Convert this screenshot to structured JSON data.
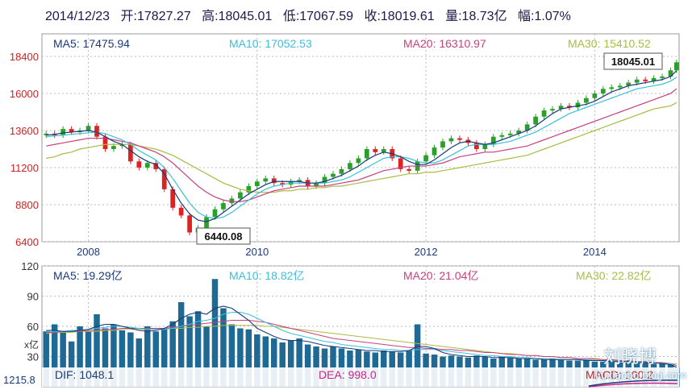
{
  "header": {
    "date": "2014/12/23",
    "open": "开:17827.27",
    "high": "高:18045.01",
    "low": "低:17067.59",
    "close": "收:18019.61",
    "volume": "量:18.73亿",
    "change": "幅:1.07%"
  },
  "price_ma_labels": [
    {
      "text": "MA5: 17475.94",
      "color": "#1a3a7a"
    },
    {
      "text": "MA10: 17052.53",
      "color": "#3cc0d8"
    },
    {
      "text": "MA20: 16310.97",
      "color": "#c8407e"
    },
    {
      "text": "MA30: 15410.52",
      "color": "#aabb44"
    }
  ],
  "volume_ma_labels": [
    {
      "text": "MA5: 19.29亿",
      "color": "#1a3a7a"
    },
    {
      "text": "MA10: 18.82亿",
      "color": "#3cc0d8"
    },
    {
      "text": "MA20: 21.04亿",
      "color": "#c8407e"
    },
    {
      "text": "MA30: 22.82亿",
      "color": "#aabb44"
    }
  ],
  "macd": {
    "dif": "DIF: 1048.1",
    "dea": "DEA: 998.0",
    "macd": "MACD: 100.2",
    "left_value": "1215.8"
  },
  "volume_unit": "x亿",
  "callouts": {
    "high": "18045.01",
    "low": "6440.08"
  },
  "watermark": {
    "name": "刘晓博",
    "site": "liuxiaobo.blog.com"
  },
  "colors": {
    "up": "#2aa02a",
    "down": "#dd2222",
    "volume": "#1f6a94"
  },
  "chart_data": [
    {
      "type": "candlestick",
      "title": "2014/12/23",
      "x_ticks": [
        "2008",
        "2010",
        "2012",
        "2014"
      ],
      "y_ticks": [
        6400,
        8800,
        11200,
        13600,
        16000,
        18400
      ],
      "ylim": [
        6400,
        18400
      ],
      "grid": true,
      "annotations": [
        {
          "text": "18045.01",
          "x": 2014.97,
          "y": 18045.01
        },
        {
          "text": "6440.08",
          "x": 2009.17,
          "y": 6440.08
        }
      ],
      "x": [
        2007.5,
        2007.6,
        2007.7,
        2007.8,
        2007.9,
        2008.0,
        2008.1,
        2008.2,
        2008.3,
        2008.4,
        2008.5,
        2008.6,
        2008.7,
        2008.8,
        2008.9,
        2009.0,
        2009.1,
        2009.2,
        2009.3,
        2009.4,
        2009.5,
        2009.6,
        2009.7,
        2009.8,
        2009.9,
        2010.0,
        2010.1,
        2010.2,
        2010.3,
        2010.4,
        2010.5,
        2010.6,
        2010.7,
        2010.8,
        2010.9,
        2011.0,
        2011.1,
        2011.2,
        2011.3,
        2011.4,
        2011.5,
        2011.6,
        2011.7,
        2011.8,
        2011.9,
        2012.0,
        2012.1,
        2012.2,
        2012.3,
        2012.4,
        2012.5,
        2012.6,
        2012.7,
        2012.8,
        2012.9,
        2013.0,
        2013.1,
        2013.2,
        2013.3,
        2013.4,
        2013.5,
        2013.6,
        2013.7,
        2013.8,
        2013.9,
        2014.0,
        2014.1,
        2014.2,
        2014.3,
        2014.4,
        2014.5,
        2014.6,
        2014.7,
        2014.8,
        2014.9,
        2014.97
      ],
      "close": [
        13400,
        13300,
        13700,
        13500,
        13600,
        13900,
        13200,
        12400,
        12600,
        12700,
        11600,
        11200,
        11500,
        11100,
        9800,
        8600,
        8100,
        7000,
        7300,
        8000,
        8500,
        8900,
        9200,
        9600,
        10000,
        10300,
        10500,
        10200,
        10100,
        10300,
        10400,
        10000,
        10200,
        10600,
        10800,
        11100,
        11500,
        11800,
        12400,
        12200,
        12400,
        11800,
        11100,
        11000,
        11600,
        12000,
        12500,
        12900,
        13100,
        13000,
        12800,
        12400,
        12700,
        13200,
        13300,
        13400,
        13600,
        14000,
        14500,
        14900,
        15000,
        15200,
        15100,
        15400,
        15700,
        16000,
        16300,
        16400,
        16500,
        16700,
        16900,
        16800,
        17000,
        17100,
        17500,
        18019.61
      ],
      "ma5": [
        13300,
        13350,
        13450,
        13500,
        13550,
        13600,
        13500,
        13200,
        12900,
        12700,
        12300,
        11900,
        11600,
        11400,
        10800,
        9800,
        8900,
        8200,
        7800,
        7700,
        7900,
        8300,
        8700,
        9100,
        9500,
        9800,
        10100,
        10300,
        10300,
        10300,
        10300,
        10200,
        10200,
        10300,
        10500,
        10700,
        11000,
        11300,
        11700,
        12000,
        12200,
        12100,
        11900,
        11600,
        11400,
        11400,
        11700,
        12100,
        12500,
        12800,
        12900,
        12800,
        12700,
        12800,
        13000,
        13200,
        13400,
        13600,
        13900,
        14300,
        14700,
        15000,
        15100,
        15200,
        15300,
        15500,
        15800,
        16100,
        16300,
        16500,
        16600,
        16700,
        16800,
        16900,
        17100,
        17475.94
      ],
      "ma10": [
        13200,
        13250,
        13300,
        13350,
        13400,
        13450,
        13500,
        13400,
        13200,
        13000,
        12700,
        12300,
        12000,
        11700,
        11200,
        10500,
        9700,
        8900,
        8300,
        8000,
        7900,
        8000,
        8300,
        8700,
        9100,
        9500,
        9800,
        10000,
        10100,
        10200,
        10200,
        10200,
        10200,
        10200,
        10300,
        10400,
        10600,
        10900,
        11200,
        11500,
        11800,
        11900,
        11900,
        11800,
        11600,
        11500,
        11500,
        11700,
        12000,
        12300,
        12600,
        12700,
        12700,
        12700,
        12800,
        12900,
        13100,
        13300,
        13500,
        13800,
        14100,
        14400,
        14700,
        14900,
        15100,
        15300,
        15500,
        15700,
        15900,
        16100,
        16300,
        16400,
        16500,
        16600,
        16800,
        17052.53
      ],
      "ma20": [
        12600,
        12700,
        12800,
        12900,
        13000,
        13100,
        13100,
        13100,
        13000,
        12900,
        12800,
        12600,
        12400,
        12200,
        11900,
        11500,
        11000,
        10500,
        10000,
        9600,
        9300,
        9100,
        9000,
        9000,
        9100,
        9300,
        9500,
        9700,
        9800,
        9900,
        10000,
        10000,
        10000,
        10000,
        10100,
        10200,
        10300,
        10400,
        10600,
        10800,
        11000,
        11100,
        11200,
        11300,
        11300,
        11300,
        11400,
        11500,
        11700,
        11900,
        12000,
        12100,
        12200,
        12200,
        12300,
        12400,
        12500,
        12600,
        12800,
        13000,
        13200,
        13400,
        13600,
        13800,
        14000,
        14200,
        14400,
        14600,
        14800,
        15000,
        15200,
        15400,
        15600,
        15800,
        16000,
        16310.97
      ],
      "ma30": [
        11800,
        11900,
        12100,
        12200,
        12400,
        12500,
        12600,
        12700,
        12700,
        12700,
        12700,
        12600,
        12500,
        12400,
        12200,
        12000,
        11700,
        11400,
        11100,
        10800,
        10500,
        10200,
        10000,
        9800,
        9700,
        9600,
        9600,
        9600,
        9700,
        9700,
        9800,
        9800,
        9900,
        9900,
        10000,
        10000,
        10100,
        10200,
        10300,
        10400,
        10500,
        10600,
        10700,
        10800,
        10800,
        10900,
        10900,
        11000,
        11100,
        11200,
        11300,
        11400,
        11500,
        11600,
        11700,
        11800,
        11900,
        12000,
        12200,
        12400,
        12600,
        12800,
        13000,
        13200,
        13400,
        13600,
        13800,
        14000,
        14200,
        14400,
        14600,
        14800,
        15000,
        15100,
        15200,
        15410.52
      ]
    },
    {
      "type": "bar",
      "title": "",
      "y_ticks": [
        30,
        60,
        90,
        120
      ],
      "ylim": [
        0,
        120
      ],
      "unit": "x亿",
      "x": [
        2007.5,
        2007.6,
        2007.7,
        2007.8,
        2007.9,
        2008.0,
        2008.1,
        2008.2,
        2008.3,
        2008.4,
        2008.5,
        2008.6,
        2008.7,
        2008.8,
        2008.9,
        2009.0,
        2009.1,
        2009.2,
        2009.3,
        2009.4,
        2009.5,
        2009.6,
        2009.7,
        2009.8,
        2009.9,
        2010.0,
        2010.1,
        2010.2,
        2010.3,
        2010.4,
        2010.5,
        2010.6,
        2010.7,
        2010.8,
        2010.9,
        2011.0,
        2011.1,
        2011.2,
        2011.3,
        2011.4,
        2011.5,
        2011.6,
        2011.7,
        2011.8,
        2011.9,
        2012.0,
        2012.1,
        2012.2,
        2012.3,
        2012.4,
        2012.5,
        2012.6,
        2012.7,
        2012.8,
        2012.9,
        2013.0,
        2013.1,
        2013.2,
        2013.3,
        2013.4,
        2013.5,
        2013.6,
        2013.7,
        2013.8,
        2013.9,
        2014.0,
        2014.1,
        2014.2,
        2014.3,
        2014.4,
        2014.5,
        2014.6,
        2014.7,
        2014.8,
        2014.9,
        2014.97
      ],
      "values": [
        55,
        62,
        55,
        45,
        60,
        55,
        72,
        58,
        62,
        56,
        54,
        48,
        60,
        55,
        58,
        65,
        84,
        70,
        75,
        60,
        107,
        78,
        62,
        58,
        57,
        52,
        50,
        48,
        44,
        46,
        48,
        42,
        40,
        38,
        40,
        38,
        36,
        37,
        35,
        34,
        36,
        35,
        34,
        36,
        62,
        33,
        32,
        30,
        31,
        30,
        29,
        31,
        30,
        28,
        30,
        29,
        28,
        28,
        27,
        27,
        28,
        27,
        26,
        26,
        27,
        25,
        25,
        25,
        24,
        24,
        25,
        24,
        23,
        23,
        22,
        19
      ],
      "ma5": [
        56,
        56,
        55,
        55,
        56,
        57,
        60,
        62,
        62,
        60,
        58,
        56,
        55,
        56,
        58,
        62,
        68,
        72,
        74,
        72,
        78,
        80,
        78,
        72,
        66,
        58,
        54,
        50,
        47,
        46,
        46,
        45,
        43,
        41,
        40,
        39,
        38,
        37,
        36,
        36,
        35,
        35,
        35,
        36,
        40,
        40,
        38,
        34,
        32,
        31,
        30,
        30,
        30,
        29,
        29,
        29,
        28,
        28,
        28,
        27,
        27,
        27,
        27,
        27,
        26,
        26,
        26,
        25,
        25,
        25,
        24,
        24,
        24,
        23,
        22,
        19.29
      ],
      "ma10": [
        55,
        55,
        55,
        56,
        56,
        57,
        58,
        59,
        60,
        60,
        59,
        58,
        57,
        57,
        57,
        58,
        60,
        62,
        65,
        66,
        68,
        72,
        74,
        74,
        72,
        68,
        64,
        60,
        56,
        53,
        51,
        49,
        47,
        45,
        44,
        42,
        41,
        40,
        39,
        38,
        37,
        37,
        36,
        36,
        37,
        37,
        37,
        36,
        35,
        34,
        33,
        32,
        31,
        31,
        30,
        30,
        29,
        29,
        28,
        28,
        28,
        27,
        27,
        27,
        27,
        26,
        26,
        26,
        25,
        25,
        25,
        24,
        24,
        23,
        23,
        18.82
      ],
      "ma20": [
        54,
        54,
        55,
        55,
        55,
        56,
        56,
        57,
        57,
        58,
        58,
        58,
        58,
        58,
        58,
        59,
        60,
        61,
        62,
        63,
        64,
        65,
        66,
        66,
        66,
        65,
        64,
        62,
        60,
        58,
        56,
        54,
        52,
        50,
        48,
        47,
        46,
        45,
        44,
        43,
        42,
        41,
        40,
        39,
        39,
        38,
        38,
        37,
        37,
        36,
        36,
        35,
        34,
        34,
        33,
        32,
        32,
        31,
        31,
        30,
        30,
        29,
        29,
        28,
        28,
        28,
        27,
        27,
        26,
        26,
        25,
        25,
        24,
        24,
        23,
        21.04
      ],
      "ma30": [
        53,
        54,
        54,
        54,
        55,
        55,
        55,
        56,
        56,
        57,
        57,
        57,
        57,
        58,
        58,
        58,
        58,
        59,
        59,
        60,
        60,
        61,
        61,
        61,
        61,
        61,
        60,
        60,
        59,
        58,
        57,
        56,
        55,
        54,
        53,
        52,
        51,
        50,
        49,
        48,
        47,
        46,
        45,
        44,
        43,
        42,
        41,
        40,
        39,
        38,
        37,
        36,
        35,
        34,
        33,
        33,
        32,
        31,
        31,
        30,
        30,
        29,
        29,
        28,
        28,
        27,
        27,
        26,
        26,
        25,
        25,
        25,
        24,
        24,
        23,
        22.82
      ]
    }
  ]
}
